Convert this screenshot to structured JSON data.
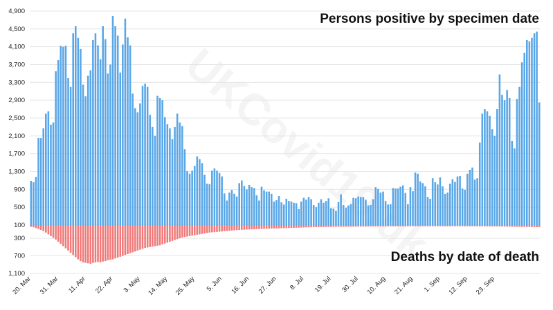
{
  "chart_data": {
    "type": "bar",
    "title": "Persons positive by specimen date",
    "subtitle": "Deaths by date of death",
    "watermark": "UKCovid19.uk",
    "colors": {
      "positive": "#5aa7e8",
      "deaths": "#f07a7a"
    },
    "y_ticks_up": [
      "4,900",
      "4,500",
      "4,100",
      "3,700",
      "3,300",
      "2,900",
      "2,500",
      "2,100",
      "1,700",
      "1,300",
      "900",
      "500",
      "100"
    ],
    "y_ticks_down": [
      "300",
      "700",
      "1,100"
    ],
    "y_range_positive": [
      0,
      4900
    ],
    "y_range_deaths": [
      0,
      1100
    ],
    "x_tick_labels": [
      "20. Mar",
      "31. Mar",
      "11. Apr",
      "22. Apr",
      "3. May",
      "14. May",
      "25. May",
      "5. Jun",
      "16. Jun",
      "27. Jun",
      "8. Jul",
      "19. Jul",
      "30. Jul",
      "10. Aug",
      "21. Aug",
      "1. Sep",
      "12. Sep",
      "23. Sep"
    ],
    "x_tick_every_days": 11,
    "series": [
      {
        "name": "Persons positive by specimen date",
        "values": [
          1090,
          1060,
          1180,
          2050,
          2050,
          2270,
          2600,
          2650,
          2350,
          2400,
          3550,
          3800,
          4120,
          4100,
          4120,
          3400,
          3200,
          4400,
          4560,
          4300,
          4050,
          3250,
          2990,
          3450,
          3570,
          4250,
          4400,
          4130,
          3820,
          4560,
          4270,
          3500,
          3700,
          4790,
          4560,
          4350,
          3520,
          4150,
          4730,
          4310,
          4130,
          3050,
          2720,
          2630,
          2830,
          3220,
          3270,
          3200,
          2570,
          2300,
          2100,
          3000,
          2950,
          2900,
          2520,
          2360,
          2270,
          2030,
          2300,
          2600,
          2400,
          2320,
          1800,
          1310,
          1250,
          1320,
          1430,
          1640,
          1580,
          1490,
          1230,
          1030,
          1020,
          1320,
          1370,
          1320,
          1270,
          1190,
          810,
          650,
          830,
          890,
          800,
          740,
          1040,
          1100,
          980,
          900,
          1000,
          950,
          930,
          770,
          650,
          960,
          880,
          850,
          850,
          800,
          630,
          660,
          750,
          610,
          560,
          690,
          640,
          630,
          600,
          590,
          460,
          630,
          710,
          670,
          730,
          680,
          550,
          500,
          600,
          680,
          600,
          640,
          700,
          480,
          470,
          420,
          620,
          790,
          550,
          490,
          540,
          570,
          710,
          700,
          740,
          730,
          730,
          670,
          540,
          550,
          680,
          950,
          910,
          830,
          850,
          640,
          560,
          570,
          930,
          920,
          920,
          960,
          990,
          820,
          570,
          950,
          860,
          1280,
          1250,
          1080,
          1040,
          970,
          730,
          690,
          1150,
          1060,
          1010,
          1170,
          970,
          800,
          830,
          1030,
          1130,
          1070,
          1190,
          1200,
          920,
          890,
          1250,
          1340,
          1390,
          1120,
          1150,
          1950,
          2600,
          2700,
          2650,
          2550,
          2250,
          2100,
          2700,
          3480,
          3020,
          2900,
          3130,
          2950,
          1990,
          1820,
          2930,
          3200,
          3750,
          3960,
          4250,
          4220,
          4300,
          4400,
          4440,
          2850
        ],
        "values_as_drawn": "bars above baseline"
      },
      {
        "name": "Deaths by date of death",
        "values": [
          40,
          50,
          70,
          90,
          110,
          140,
          170,
          210,
          250,
          290,
          330,
          380,
          430,
          480,
          530,
          580,
          630,
          680,
          730,
          780,
          820,
          850,
          860,
          870,
          880,
          860,
          850,
          840,
          850,
          830,
          820,
          800,
          790,
          780,
          760,
          740,
          720,
          700,
          680,
          660,
          640,
          620,
          600,
          580,
          560,
          540,
          520,
          510,
          500,
          490,
          480,
          470,
          460,
          440,
          420,
          400,
          380,
          360,
          340,
          320,
          300,
          280,
          270,
          260,
          250,
          240,
          230,
          220,
          210,
          200,
          190,
          180,
          170,
          165,
          160,
          155,
          150,
          145,
          140,
          135,
          130,
          125,
          120,
          115,
          112,
          108,
          105,
          102,
          100,
          98,
          95,
          92,
          90,
          88,
          86,
          84,
          82,
          80,
          78,
          76,
          74,
          72,
          70,
          68,
          66,
          64,
          62,
          60,
          58,
          56,
          54,
          52,
          50,
          49,
          48,
          47,
          46,
          45,
          44,
          43,
          42,
          41,
          40,
          40,
          39,
          38,
          38,
          37,
          36,
          36,
          35,
          35,
          34,
          34,
          33,
          33,
          32,
          32,
          31,
          31,
          30,
          30,
          30,
          29,
          29,
          29,
          28,
          28,
          28,
          28,
          27,
          27,
          27,
          27,
          26,
          26,
          26,
          26,
          26,
          26,
          26,
          26,
          26,
          26,
          26,
          26,
          26,
          26,
          26,
          26,
          26,
          26,
          26,
          26,
          26,
          26,
          26,
          27,
          27,
          27,
          28,
          28,
          28,
          29,
          29,
          30,
          30,
          31,
          31,
          32,
          33,
          34,
          35,
          36,
          37,
          38,
          39,
          40,
          41,
          42,
          43,
          44,
          45,
          46,
          47,
          48,
          49,
          50,
          51,
          52,
          53
        ],
        "values_as_drawn": "bars below baseline"
      }
    ]
  }
}
